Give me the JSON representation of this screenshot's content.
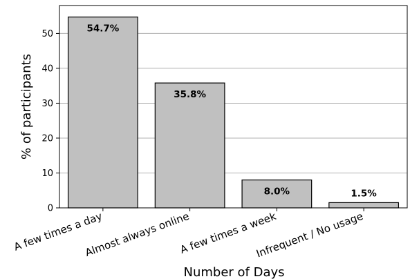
{
  "chart_data": {
    "type": "bar",
    "categories": [
      "A few times a day",
      "Almost always online",
      "A few times a week",
      "Infrequent / No usage"
    ],
    "values": [
      54.7,
      35.8,
      8.0,
      1.5
    ],
    "data_labels": [
      "54.7%",
      "35.8%",
      "8.0%",
      "1.5%"
    ],
    "xlabel": "Number of Days",
    "ylabel": "% of participants",
    "ylim": [
      0,
      58
    ],
    "yticks": [
      0,
      10,
      20,
      30,
      40,
      50
    ],
    "grid": "horizontal",
    "bar_color": "#c0c0c0",
    "edge_color": "#000000"
  }
}
